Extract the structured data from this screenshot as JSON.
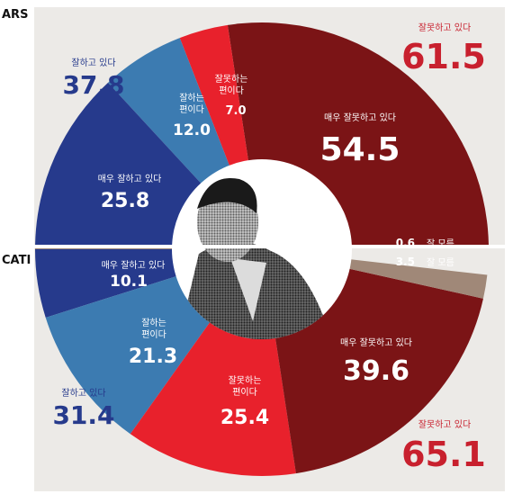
{
  "chart_data": [
    {
      "type": "pie",
      "panel": "ARS",
      "categories": [
        "매우 잘못하고 있다",
        "잘못하는 편이다",
        "잘하는 편이다",
        "매우 잘하고 있다",
        "잘 모름"
      ],
      "values": [
        54.5,
        7.0,
        12.0,
        25.8,
        0.6
      ],
      "value_labels": [
        "54.5",
        "7.0",
        "12.0",
        "25.8",
        "0.6"
      ],
      "slice_labels": [
        "매우 잘못하고 있다",
        "잘못하는\n편이다",
        "잘하는\n편이다",
        "매우 잘하고 있다",
        "잘 모름"
      ],
      "colors": [
        "#7b1416",
        "#e8212c",
        "#3c7bb1",
        "#263a8c",
        "#a08878"
      ],
      "totals": [
        {
          "label": "잘하고 있다",
          "value": "37.8",
          "color": "#263a8c"
        },
        {
          "label": "잘못하고 있다",
          "value": "61.5",
          "color": "#c8202e"
        }
      ]
    },
    {
      "type": "pie",
      "panel": "CATI",
      "categories": [
        "매우 잘하고 있다",
        "잘하는 편이다",
        "잘못하는 편이다",
        "매우 잘못하고 있다",
        "잘 모름"
      ],
      "values": [
        10.1,
        21.3,
        25.4,
        39.6,
        3.5
      ],
      "value_labels": [
        "10.1",
        "21.3",
        "25.4",
        "39.6",
        "3.5"
      ],
      "slice_labels": [
        "매우 잘하고 있다",
        "잘하는\n편이다",
        "잘못하는\n편이다",
        "매우 잘못하고 있다",
        "잘 모름"
      ],
      "colors": [
        "#263a8c",
        "#3c7bb1",
        "#e8212c",
        "#7b1416",
        "#a08878"
      ],
      "totals": [
        {
          "label": "잘하고 있다",
          "value": "31.4",
          "color": "#263a8c"
        },
        {
          "label": "잘못하고 있다",
          "value": "65.1",
          "color": "#c8202e"
        }
      ]
    }
  ],
  "colors": {
    "background_panel": "#eceae7",
    "divider": "#ffffff"
  },
  "photo": "grayscale halftone portrait in donut centre"
}
